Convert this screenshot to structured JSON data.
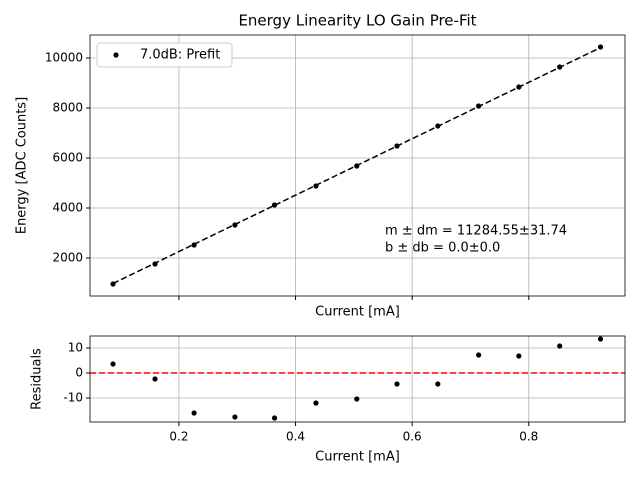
{
  "chart_data": [
    {
      "type": "scatter",
      "title": "Energy Linearity LO Gain Pre-Fit",
      "xlabel": "Current [mA]",
      "ylabel": "Energy [ADC Counts]",
      "xlim": [
        0.0475,
        0.965
      ],
      "ylim": [
        480,
        10920
      ],
      "xticks": [
        0.2,
        0.4,
        0.6,
        0.8
      ],
      "xticklabels": false,
      "yticks": [
        2000,
        4000,
        6000,
        8000,
        10000
      ],
      "grid": true,
      "legend": "upper left",
      "series": [
        {
          "name": "7.0dB: Prefit",
          "color": "#000000",
          "x": [
            0.087,
            0.159,
            0.226,
            0.296,
            0.364,
            0.435,
            0.505,
            0.574,
            0.644,
            0.714,
            0.783,
            0.853,
            0.923
          ],
          "values": [
            960,
            1760,
            2520,
            3320,
            4120,
            4880,
            5680,
            6480,
            7280,
            8080,
            8840,
            9640,
            10440
          ]
        }
      ],
      "fit": {
        "color": "#000000",
        "dashed": true,
        "x": [
          0.087,
          0.923
        ],
        "values": [
          982,
          10416
        ]
      },
      "annotations": [
        "m ± dm = 11284.55±31.74",
        "b ± db = 0.0±0.0"
      ]
    },
    {
      "type": "scatter",
      "xlabel": "Current [mA]",
      "ylabel": "Residuals",
      "xlim": [
        0.0475,
        0.965
      ],
      "ylim": [
        -19.6,
        14.8
      ],
      "xticks": [
        0.2,
        0.4,
        0.6,
        0.8
      ],
      "xticklabels": true,
      "yticks": [
        -10,
        0,
        10
      ],
      "grid": true,
      "hline": {
        "value": 0,
        "color": "#ff0000",
        "dashed": true
      },
      "series": [
        {
          "color": "#000000",
          "x": [
            0.087,
            0.159,
            0.226,
            0.296,
            0.364,
            0.435,
            0.505,
            0.574,
            0.644,
            0.714,
            0.783,
            0.853,
            0.923
          ],
          "values": [
            3.6,
            -2.4,
            -16,
            -17.6,
            -18,
            -12,
            -10.4,
            -4.4,
            -4.4,
            7.2,
            6.8,
            10.8,
            13.6
          ]
        }
      ]
    }
  ]
}
